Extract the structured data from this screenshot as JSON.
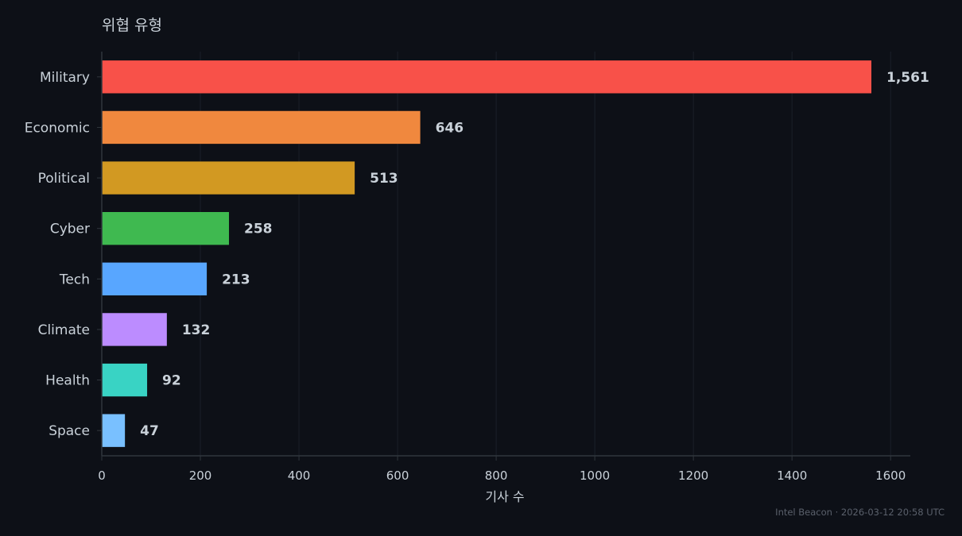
{
  "chart_data": {
    "type": "bar",
    "orientation": "horizontal",
    "ylabel_title": "위협 유형",
    "xlabel": "기사 수",
    "categories": [
      "Military",
      "Economic",
      "Political",
      "Cyber",
      "Tech",
      "Climate",
      "Health",
      "Space"
    ],
    "values": [
      1561,
      646,
      513,
      258,
      213,
      132,
      92,
      47
    ],
    "value_labels": [
      "1,561",
      "646",
      "513",
      "258",
      "213",
      "132",
      "92",
      "47"
    ],
    "colors": [
      "#f85149",
      "#f0883e",
      "#d29922",
      "#3fb950",
      "#58a6ff",
      "#bc8cff",
      "#39d3c4",
      "#79c0ff"
    ],
    "xlim": [
      0,
      1640
    ],
    "xticks": [
      0,
      200,
      400,
      600,
      800,
      1000,
      1200,
      1400,
      1600
    ],
    "grid": "vertical"
  },
  "footer": {
    "text": "Intel Beacon · 2026-03-12 20:58 UTC"
  },
  "theme": {
    "background": "#0d1017",
    "text": "#c9d1d9",
    "grid": "#1b2029",
    "axis": "#30363d"
  }
}
